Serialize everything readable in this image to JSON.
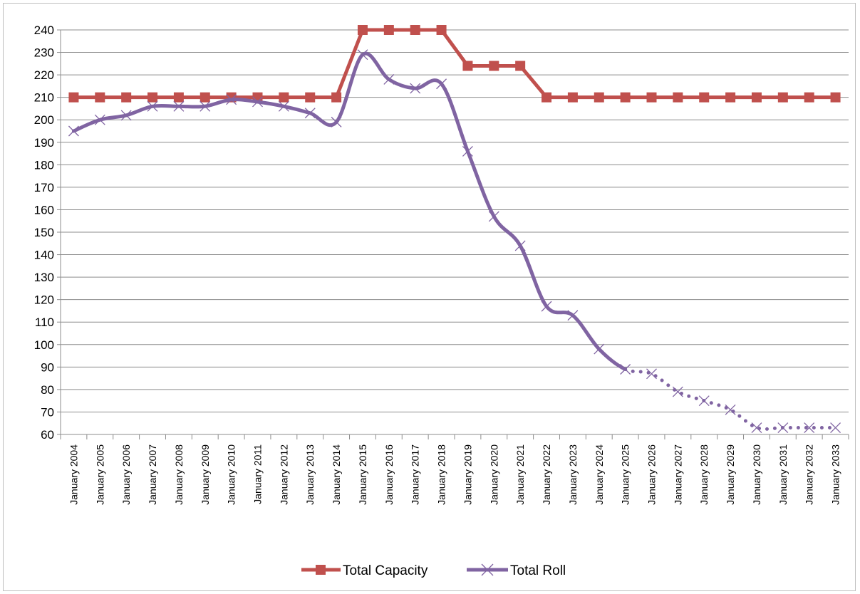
{
  "chart_data": {
    "type": "line",
    "title": "",
    "xlabel": "",
    "ylabel": "",
    "ylim": [
      60,
      240
    ],
    "ytick_step": 10,
    "grid": true,
    "legend_position": "bottom",
    "categories": [
      "January 2004",
      "January 2005",
      "January 2006",
      "January 2007",
      "January 2008",
      "January 2009",
      "January 2010",
      "January 2011",
      "January 2012",
      "January 2013",
      "January 2014",
      "January 2015",
      "January 2016",
      "January 2017",
      "January 2018",
      "January 2019",
      "January 2020",
      "January 2021",
      "January 2022",
      "January 2023",
      "January 2024",
      "January 2025",
      "January 2026",
      "January 2027",
      "January 2028",
      "January 2029",
      "January 2030",
      "January 2031",
      "January 2032",
      "January 2033"
    ],
    "series": [
      {
        "name": "Total Capacity",
        "color": "#c0504d",
        "marker": "square",
        "smooth": false,
        "values": [
          210,
          210,
          210,
          210,
          210,
          210,
          210,
          210,
          210,
          210,
          210,
          240,
          240,
          240,
          240,
          224,
          224,
          224,
          210,
          210,
          210,
          210,
          210,
          210,
          210,
          210,
          210,
          210,
          210,
          210
        ]
      },
      {
        "name": "Total Roll",
        "color": "#8064a2",
        "marker": "x",
        "smooth": true,
        "dashed_from_index": 21,
        "values": [
          195,
          200,
          202,
          206,
          206,
          206,
          209,
          208,
          206,
          203,
          199,
          229,
          218,
          214,
          216,
          186,
          157,
          144,
          117,
          113,
          98,
          89,
          87,
          79,
          75,
          71,
          63,
          63,
          63,
          63
        ]
      }
    ]
  }
}
